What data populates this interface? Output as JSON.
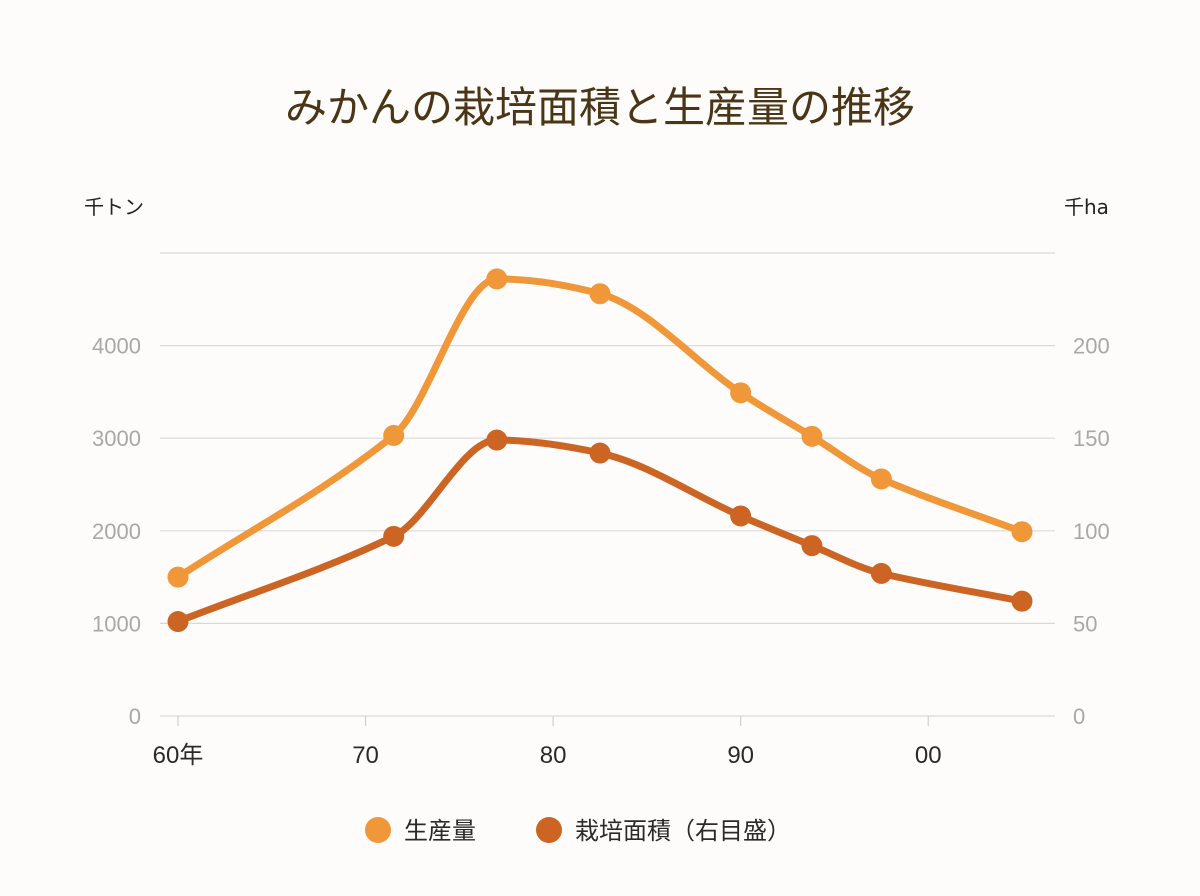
{
  "chart_data": {
    "type": "line",
    "title": "みかんの栽培面積と生産量の推移",
    "y_left_unit": "千トン",
    "y_right_unit": "千ha",
    "x_tick_labels": [
      "60年",
      "70",
      "80",
      "90",
      "00"
    ],
    "x_ticks": [
      1960,
      1970,
      1980,
      1990,
      2000
    ],
    "xlim": [
      1960,
      2005
    ],
    "y_left_ticks": [
      0,
      1000,
      2000,
      3000,
      4000
    ],
    "y_left_range": [
      0,
      5000
    ],
    "y_right_ticks": [
      0,
      50,
      100,
      150,
      200
    ],
    "y_right_range": [
      0,
      250
    ],
    "grid": true,
    "legend_position": "bottom-center",
    "series": [
      {
        "name": "生産量",
        "axis": "left",
        "color": "#f0973a",
        "x": [
          1960,
          1971.5,
          1977,
          1982.5,
          1990,
          1993.8,
          1997.5,
          2005
        ],
        "values": [
          1500,
          3030,
          4720,
          4560,
          3490,
          3020,
          2560,
          1990
        ]
      },
      {
        "name": "栽培面積（右目盛）",
        "axis": "right",
        "color": "#cc6524",
        "x": [
          1960,
          1971.5,
          1977,
          1982.5,
          1990,
          1993.8,
          1997.5,
          2005
        ],
        "values": [
          51,
          97,
          149,
          142,
          108,
          92,
          77,
          62
        ]
      }
    ]
  }
}
